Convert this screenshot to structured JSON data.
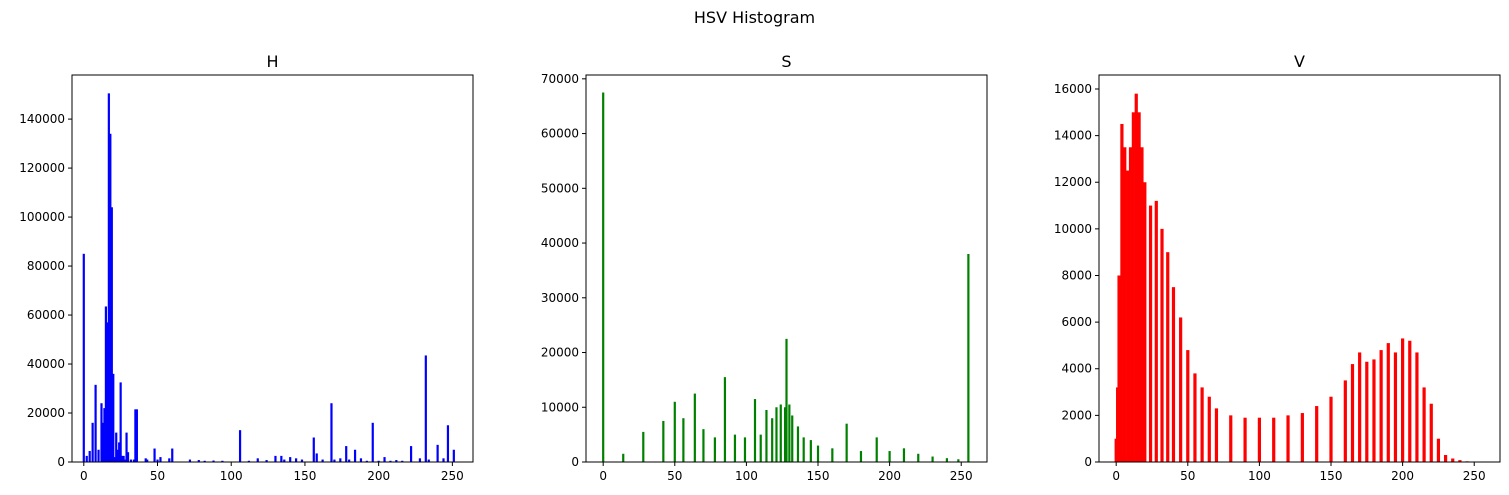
{
  "figure": {
    "suptitle": "HSV Histogram"
  },
  "chart_data": [
    {
      "type": "bar",
      "title": "H",
      "color": "#0000ff",
      "xlabel": "",
      "ylabel": "",
      "xlim": [
        -8,
        264
      ],
      "ylim": [
        0,
        158000
      ],
      "xticks": [
        0,
        50,
        100,
        150,
        200,
        250
      ],
      "yticks": [
        0,
        20000,
        40000,
        60000,
        80000,
        100000,
        120000,
        140000
      ],
      "x": [
        0,
        2,
        4,
        6,
        8,
        10,
        12,
        13,
        14,
        15,
        16,
        17,
        18,
        19,
        20,
        21,
        22,
        23,
        24,
        25,
        26,
        27,
        28,
        29,
        30,
        32,
        34,
        35,
        36,
        42,
        43,
        48,
        50,
        52,
        58,
        60,
        72,
        78,
        82,
        88,
        94,
        106,
        112,
        118,
        124,
        130,
        134,
        136,
        140,
        144,
        148,
        156,
        158,
        162,
        168,
        170,
        174,
        178,
        180,
        184,
        188,
        192,
        196,
        200,
        204,
        208,
        212,
        216,
        222,
        228,
        232,
        234,
        240,
        244,
        247,
        251
      ],
      "values": [
        85000,
        2500,
        4500,
        16000,
        31500,
        5000,
        24000,
        16000,
        22000,
        63500,
        57000,
        150500,
        134000,
        104000,
        36000,
        2000,
        12000,
        5000,
        8000,
        32500,
        2500,
        2500,
        1000,
        12000,
        4000,
        1000,
        1000,
        21500,
        21500,
        1500,
        1000,
        5500,
        1000,
        2000,
        1500,
        5500,
        1000,
        800,
        500,
        600,
        500,
        13000,
        500,
        1500,
        800,
        2500,
        2500,
        1000,
        2000,
        1500,
        1000,
        10000,
        3500,
        1000,
        24000,
        1000,
        1500,
        6500,
        1000,
        5000,
        1500,
        500,
        16000,
        500,
        2000,
        500,
        800,
        500,
        6500,
        1500,
        43500,
        1000,
        7000,
        1500,
        15000,
        5000
      ]
    },
    {
      "type": "bar",
      "title": "S",
      "color": "#008000",
      "xlabel": "",
      "ylabel": "",
      "xlim": [
        -12,
        268
      ],
      "ylim": [
        0,
        70700
      ],
      "xticks": [
        0,
        50,
        100,
        150,
        200,
        250
      ],
      "yticks": [
        0,
        10000,
        20000,
        30000,
        40000,
        50000,
        60000,
        70000
      ],
      "x": [
        0,
        14,
        28,
        42,
        50,
        56,
        64,
        70,
        78,
        85,
        92,
        99,
        106,
        110,
        114,
        118,
        121,
        124,
        127,
        128,
        130,
        132,
        136,
        140,
        145,
        150,
        160,
        170,
        180,
        191,
        200,
        210,
        220,
        230,
        240,
        248,
        255
      ],
      "values": [
        67500,
        1500,
        5500,
        7500,
        11000,
        8000,
        12500,
        6000,
        4500,
        15500,
        5000,
        4500,
        11500,
        5000,
        9500,
        8000,
        10000,
        10500,
        10000,
        22500,
        10500,
        8500,
        6500,
        4500,
        4000,
        3000,
        2500,
        7000,
        2000,
        4500,
        2000,
        2500,
        1500,
        1000,
        700,
        500,
        38000
      ]
    },
    {
      "type": "bar",
      "title": "V",
      "color": "#ff0000",
      "xlabel": "",
      "ylabel": "",
      "xlim": [
        -12,
        268
      ],
      "ylim": [
        0,
        16600
      ],
      "xticks": [
        0,
        50,
        100,
        150,
        200,
        250
      ],
      "yticks": [
        0,
        2000,
        4000,
        6000,
        8000,
        10000,
        12000,
        14000,
        16000
      ],
      "x": [
        0,
        1,
        2,
        4,
        6,
        8,
        10,
        12,
        14,
        16,
        18,
        20,
        24,
        28,
        32,
        36,
        40,
        45,
        50,
        55,
        60,
        65,
        70,
        80,
        90,
        100,
        110,
        120,
        130,
        140,
        150,
        160,
        165,
        170,
        175,
        180,
        185,
        190,
        195,
        200,
        205,
        210,
        215,
        220,
        225,
        230,
        235,
        240,
        245
      ],
      "values": [
        1000,
        3200,
        8000,
        14500,
        13500,
        12500,
        13500,
        15000,
        15800,
        15000,
        13500,
        12000,
        11000,
        11200,
        10000,
        9000,
        7500,
        6200,
        4800,
        3800,
        3200,
        2800,
        2300,
        2000,
        1900,
        1900,
        1900,
        2000,
        2100,
        2400,
        2800,
        3500,
        4200,
        4700,
        4300,
        4400,
        4800,
        5100,
        4700,
        5300,
        5200,
        4700,
        3200,
        2500,
        1000,
        300,
        150,
        80,
        30
      ]
    }
  ]
}
